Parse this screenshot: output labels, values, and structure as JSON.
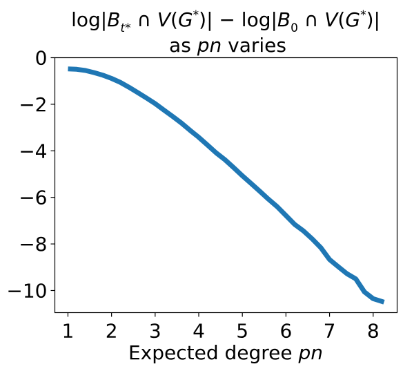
{
  "chart_data": {
    "type": "line",
    "title": {
      "line1_parts": [
        "log|",
        "B",
        "t*",
        " ∩ ",
        "V",
        "(",
        "G",
        "*",
        ")| − log|",
        "B",
        "0",
        " ∩ ",
        "V",
        "(",
        "G",
        "*",
        ")|"
      ],
      "line2_prefix": "as ",
      "line2_var": "pn",
      "line2_suffix": " varies"
    },
    "xlabel": {
      "text": "Expected degree ",
      "var": "pn"
    },
    "ylabel": "",
    "xlim": [
      0.7,
      8.55
    ],
    "ylim": [
      -10.95,
      0.0
    ],
    "x_ticks": [
      1,
      2,
      3,
      4,
      5,
      6,
      7,
      8
    ],
    "x_tick_labels": [
      "1",
      "2",
      "3",
      "4",
      "5",
      "6",
      "7",
      "8"
    ],
    "y_ticks": [
      0,
      -2,
      -4,
      -6,
      -8,
      -10
    ],
    "y_tick_labels": [
      "0",
      "−2",
      "−4",
      "−6",
      "−8",
      "−10"
    ],
    "grid": false,
    "series": [
      {
        "color": "#1f77b4",
        "x": [
          1.0,
          1.2,
          1.4,
          1.6,
          1.8,
          2.0,
          2.2,
          2.4,
          2.6,
          2.8,
          3.0,
          3.2,
          3.4,
          3.6,
          3.8,
          4.0,
          4.2,
          4.4,
          4.6,
          4.8,
          5.0,
          5.2,
          5.4,
          5.6,
          5.8,
          6.0,
          6.2,
          6.4,
          6.6,
          6.8,
          7.0,
          7.2,
          7.4,
          7.6,
          7.8,
          8.0,
          8.25
        ],
        "values": [
          -0.48,
          -0.5,
          -0.55,
          -0.64,
          -0.75,
          -0.89,
          -1.06,
          -1.27,
          -1.5,
          -1.73,
          -1.97,
          -2.25,
          -2.52,
          -2.8,
          -3.12,
          -3.42,
          -3.75,
          -4.09,
          -4.38,
          -4.72,
          -5.07,
          -5.4,
          -5.74,
          -6.08,
          -6.4,
          -6.78,
          -7.16,
          -7.44,
          -7.78,
          -8.16,
          -8.67,
          -8.98,
          -9.28,
          -9.5,
          -10.06,
          -10.35,
          -10.5
        ]
      }
    ]
  }
}
